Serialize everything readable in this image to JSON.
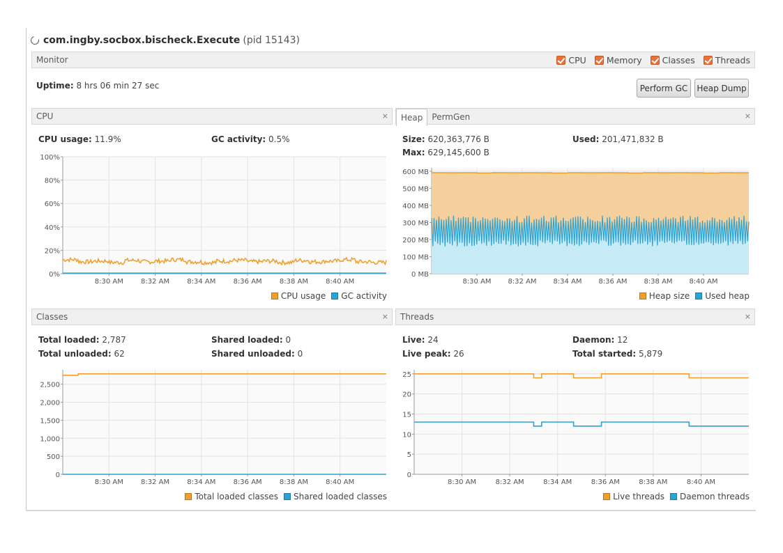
{
  "header": {
    "app_name": "com.ingby.socbox.bischeck.Execute",
    "pid": "(pid 15143)"
  },
  "monitor": {
    "label": "Monitor",
    "checks": [
      {
        "label": "CPU",
        "checked": true
      },
      {
        "label": "Memory",
        "checked": true
      },
      {
        "label": "Classes",
        "checked": true
      },
      {
        "label": "Threads",
        "checked": true
      }
    ],
    "uptime_label": "Uptime:",
    "uptime_value": "8 hrs 06 min 27 sec",
    "perform_gc": "Perform GC",
    "heap_dump": "Heap Dump"
  },
  "colors": {
    "orange": "#f0a030",
    "blue": "#2ba3d4",
    "orange_fill": "#f5cf9c",
    "blue_fill": "#c6ebf7"
  },
  "cpu": {
    "title": "CPU",
    "close": "×",
    "usage_label": "CPU usage:",
    "usage_value": "11.9%",
    "gc_label": "GC activity:",
    "gc_value": "0.5%",
    "legend": [
      "CPU usage",
      "GC activity"
    ]
  },
  "heap": {
    "tabs": [
      "Heap",
      "PermGen"
    ],
    "close": "×",
    "size_label": "Size:",
    "size_value": "620,363,776 B",
    "used_label": "Used:",
    "used_value": "201,471,832 B",
    "max_label": "Max:",
    "max_value": "629,145,600 B",
    "legend": [
      "Heap size",
      "Used heap"
    ]
  },
  "classes": {
    "title": "Classes",
    "close": "×",
    "total_loaded_label": "Total loaded:",
    "total_loaded_value": "2,787",
    "shared_loaded_label": "Shared loaded:",
    "shared_loaded_value": "0",
    "total_unloaded_label": "Total unloaded:",
    "total_unloaded_value": "62",
    "shared_unloaded_label": "Shared unloaded:",
    "shared_unloaded_value": "0",
    "legend": [
      "Total loaded classes",
      "Shared loaded classes"
    ]
  },
  "threads": {
    "title": "Threads",
    "close": "×",
    "live_label": "Live:",
    "live_value": "24",
    "daemon_label": "Daemon:",
    "daemon_value": "12",
    "peak_label": "Live peak:",
    "peak_value": "26",
    "started_label": "Total started:",
    "started_value": "5,879",
    "legend": [
      "Live threads",
      "Daemon threads"
    ]
  },
  "chart_data": [
    {
      "type": "line",
      "id": "cpu",
      "x_ticks": [
        "8:30 AM",
        "8:32 AM",
        "8:34 AM",
        "8:36 AM",
        "8:38 AM",
        "8:40 AM"
      ],
      "xlim": [
        "8:28 AM",
        "8:42 AM"
      ],
      "y_ticks": [
        "0%",
        "20%",
        "40%",
        "60%",
        "80%",
        "100%"
      ],
      "ylim": [
        0,
        100
      ],
      "grid": true,
      "legend_position": "bottom-right",
      "series": [
        {
          "name": "CPU usage",
          "color": "#f0a030",
          "level": 10.5,
          "noise": 1.8,
          "values_sampled": [
            13,
            10,
            11,
            9,
            12,
            10,
            11,
            13,
            10,
            9,
            11,
            12,
            10,
            11,
            9,
            12,
            10,
            11,
            13,
            10,
            9,
            10
          ]
        },
        {
          "name": "GC activity",
          "color": "#2ba3d4",
          "level": 0.5,
          "values_sampled": [
            0.5,
            0.5,
            0.5,
            0.5,
            0.5,
            0.5,
            0.5,
            0.5,
            0.5,
            0.5,
            0.5,
            0.5,
            0.5,
            0.5,
            0.5,
            0.5,
            0.5,
            0.5,
            0.5,
            0.5,
            0.5,
            0.5
          ]
        }
      ]
    },
    {
      "type": "area",
      "id": "heap",
      "x_ticks": [
        "8:30 AM",
        "8:32 AM",
        "8:34 AM",
        "8:36 AM",
        "8:38 AM",
        "8:40 AM"
      ],
      "xlim": [
        "8:28 AM",
        "8:42 AM"
      ],
      "y_ticks": [
        "0 MB",
        "100 MB",
        "200 MB",
        "300 MB",
        "400 MB",
        "500 MB",
        "600 MB"
      ],
      "ylim": [
        0,
        620
      ],
      "grid": true,
      "legend_position": "bottom-right",
      "series": [
        {
          "name": "Heap size",
          "color": "#f0a030",
          "fill": "#f5cf9c",
          "values_sampled": [
            592,
            591,
            592,
            590,
            592,
            591,
            592,
            591,
            590,
            592,
            591,
            592,
            591,
            590,
            592,
            591,
            592,
            591,
            590,
            592,
            591,
            592
          ]
        },
        {
          "name": "Used heap",
          "color": "#2ba3d4",
          "fill": "#c6ebf7",
          "min": 160,
          "max": 340,
          "oscillating": true
        }
      ]
    },
    {
      "type": "line",
      "id": "classes",
      "x_ticks": [
        "8:30 AM",
        "8:32 AM",
        "8:34 AM",
        "8:36 AM",
        "8:38 AM",
        "8:40 AM"
      ],
      "xlim": [
        "8:28 AM",
        "8:42 AM"
      ],
      "y_ticks": [
        "0",
        "500",
        "1,000",
        "1,500",
        "2,000",
        "2,500"
      ],
      "ylim": [
        0,
        2900
      ],
      "grid": true,
      "legend_position": "bottom-right",
      "series": [
        {
          "name": "Total loaded classes",
          "color": "#f0a030",
          "points": [
            [
              "8:28 AM",
              2750
            ],
            [
              "8:28:40 AM",
              2787
            ],
            [
              "8:42 AM",
              2787
            ]
          ]
        },
        {
          "name": "Shared loaded classes",
          "color": "#2ba3d4",
          "points": [
            [
              "8:28 AM",
              0
            ],
            [
              "8:42 AM",
              0
            ]
          ]
        }
      ]
    },
    {
      "type": "line",
      "id": "threads",
      "x_ticks": [
        "8:30 AM",
        "8:32 AM",
        "8:34 AM",
        "8:36 AM",
        "8:38 AM",
        "8:40 AM"
      ],
      "xlim": [
        "8:28 AM",
        "8:42 AM"
      ],
      "y_ticks": [
        "0",
        "5",
        "10",
        "15",
        "20",
        "25"
      ],
      "ylim": [
        0,
        26
      ],
      "grid": true,
      "legend_position": "bottom-right",
      "series": [
        {
          "name": "Live threads",
          "color": "#f0a030",
          "steps": [
            [
              "8:28 AM",
              25
            ],
            [
              "8:33:00 AM",
              24
            ],
            [
              "8:33:20 AM",
              25
            ],
            [
              "8:34:40 AM",
              24
            ],
            [
              "8:35:50 AM",
              25
            ],
            [
              "8:39:30 AM",
              24
            ],
            [
              "8:42 AM",
              24
            ]
          ]
        },
        {
          "name": "Daemon threads",
          "color": "#2ba3d4",
          "steps": [
            [
              "8:28 AM",
              13
            ],
            [
              "8:33:00 AM",
              12
            ],
            [
              "8:33:20 AM",
              13
            ],
            [
              "8:34:40 AM",
              12
            ],
            [
              "8:35:50 AM",
              13
            ],
            [
              "8:39:30 AM",
              12
            ],
            [
              "8:42 AM",
              12
            ]
          ]
        }
      ]
    }
  ]
}
